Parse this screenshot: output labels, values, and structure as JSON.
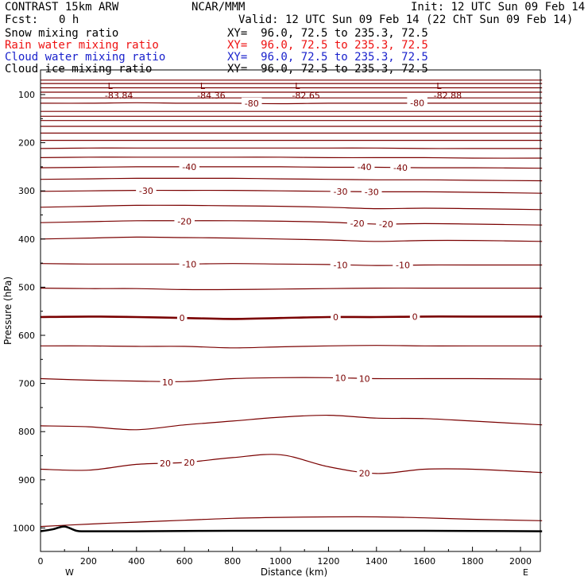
{
  "header": {
    "model": "CONTRAST 15km ARW",
    "org": "NCAR/MMM",
    "init": "Init: 12 UTC Sun 09 Feb 14",
    "fcst_label": "Fcst:",
    "fcst_value": "0 h",
    "valid": "Valid: 12 UTC Sun 09 Feb 14 (22 ChT Sun 09 Feb 14)"
  },
  "legend": [
    {
      "name": "Snow mixing ratio",
      "xy": "XY=  96.0, 72.5 to 235.3, 72.5",
      "color": "#000000"
    },
    {
      "name": "Rain water mixing ratio",
      "xy": "XY=  96.0, 72.5 to 235.3, 72.5",
      "color": "#ee1111"
    },
    {
      "name": "Cloud water mixing ratio",
      "xy": "XY=  96.0, 72.5 to 235.3, 72.5",
      "color": "#1a22cc"
    },
    {
      "name": "Cloud ice mixing ratio",
      "xy": "XY=  96.0, 72.5 to 235.3, 72.5",
      "color": "#000000"
    }
  ],
  "colors": {
    "contour": "#7a0000",
    "terrain": "#000000",
    "frame": "#000000"
  },
  "chart_data": {
    "type": "line",
    "xlabel": "Distance (km)",
    "ylabel": "Pressure (hPa)",
    "xlim": [
      0,
      2090
    ],
    "ylim": [
      1050,
      65
    ],
    "x_ticks": [
      0,
      200,
      400,
      600,
      800,
      1000,
      1200,
      1400,
      1600,
      1800,
      2000
    ],
    "y_ticks": [
      100,
      200,
      300,
      400,
      500,
      600,
      700,
      800,
      900,
      1000
    ],
    "x_end_labels": {
      "left": "W",
      "right": "E"
    },
    "contour_x": [
      0,
      200,
      400,
      600,
      800,
      1000,
      1200,
      1400,
      1600,
      1800,
      2090
    ],
    "contours": [
      {
        "label": "20",
        "p": [
          997,
          992,
          988,
          984,
          980,
          978,
          977,
          977,
          979,
          982,
          985
        ]
      },
      {
        "label": "20",
        "p": [
          878,
          880,
          868,
          864,
          854,
          848,
          873,
          887,
          878,
          878,
          885
        ]
      },
      {
        "label": "10",
        "p": [
          788,
          790,
          796,
          786,
          778,
          770,
          766,
          772,
          773,
          778,
          786
        ]
      },
      {
        "label": "10",
        "p": [
          690,
          693,
          695,
          696,
          690,
          688,
          688,
          690,
          690,
          690,
          691
        ]
      },
      {
        "label": "",
        "p": [
          622,
          622,
          623,
          623,
          626,
          624,
          622,
          621,
          622,
          622,
          622
        ]
      },
      {
        "label": "0",
        "p": [
          562,
          561,
          562,
          564,
          566,
          564,
          562,
          562,
          561,
          561,
          561
        ]
      },
      {
        "label": "",
        "p": [
          502,
          503,
          503,
          505,
          505,
          504,
          503,
          502,
          502,
          502,
          502
        ]
      },
      {
        "label": "10",
        "p": [
          451,
          452,
          452,
          452,
          451,
          452,
          453,
          455,
          454,
          454,
          454
        ]
      },
      {
        "label": "",
        "p": [
          400,
          398,
          396,
          397,
          398,
          400,
          402,
          405,
          403,
          403,
          405
        ]
      },
      {
        "label": "20",
        "p": [
          366,
          364,
          362,
          362,
          362,
          363,
          365,
          369,
          368,
          369,
          371
        ]
      },
      {
        "label": "",
        "p": [
          334,
          332,
          330,
          330,
          331,
          332,
          334,
          337,
          336,
          337,
          339
        ]
      },
      {
        "label": "30",
        "p": [
          301,
          300,
          299,
          299,
          299,
          300,
          301,
          302,
          302,
          303,
          305
        ]
      },
      {
        "label": "",
        "p": [
          276,
          275,
          274,
          274,
          274,
          275,
          276,
          277,
          277,
          278,
          279
        ]
      },
      {
        "label": "40",
        "p": [
          252,
          251,
          250,
          250,
          250,
          250,
          251,
          251,
          252,
          252,
          253
        ]
      },
      {
        "label": "",
        "p": [
          231,
          230,
          230,
          230,
          230,
          230,
          231,
          231,
          231,
          232,
          232
        ]
      },
      {
        "label": "",
        "p": [
          212,
          211,
          211,
          211,
          211,
          211,
          211,
          211,
          212,
          212,
          212
        ]
      },
      {
        "label": "",
        "p": [
          195,
          195,
          195,
          195,
          195,
          195,
          195,
          195,
          195,
          195,
          195
        ]
      },
      {
        "label": "",
        "p": [
          180,
          180,
          180,
          180,
          180,
          180,
          180,
          180,
          180,
          180,
          180
        ]
      },
      {
        "label": "",
        "p": [
          166,
          166,
          166,
          166,
          166,
          166,
          166,
          166,
          166,
          166,
          166
        ]
      },
      {
        "label": "",
        "p": [
          154,
          154,
          154,
          154,
          154,
          154,
          154,
          154,
          154,
          154,
          154
        ]
      },
      {
        "label": "",
        "p": [
          145,
          145,
          145,
          145,
          145,
          145,
          145,
          145,
          145,
          145,
          145
        ]
      },
      {
        "label": "",
        "p": [
          135,
          135,
          135,
          135,
          135,
          135,
          135,
          135,
          135,
          135,
          135
        ]
      },
      {
        "label": "80",
        "p": [
          118,
          118,
          117,
          118,
          118,
          119,
          118,
          118,
          118,
          118,
          118
        ]
      },
      {
        "label": "",
        "p": [
          107,
          107,
          107,
          107,
          107,
          107,
          107,
          107,
          107,
          107,
          107
        ]
      },
      {
        "label": "",
        "p": [
          95,
          95,
          95,
          95,
          95,
          95,
          95,
          95,
          95,
          95,
          95
        ]
      },
      {
        "label": "",
        "p": [
          86,
          86,
          86,
          86,
          86,
          86,
          86,
          86,
          86,
          86,
          86
        ]
      },
      {
        "label": "",
        "p": [
          77,
          77,
          77,
          77,
          77,
          77,
          77,
          77,
          77,
          77,
          77
        ]
      },
      {
        "label": "",
        "p": [
          70,
          70,
          70,
          70,
          70,
          70,
          70,
          70,
          70,
          70,
          70
        ]
      }
    ],
    "bold_contour_label": "0",
    "contour_labels": [
      {
        "text": "-80",
        "x": 880,
        "p": 118
      },
      {
        "text": "-80",
        "x": 1570,
        "p": 117
      },
      {
        "text": "-40",
        "x": 620,
        "p": 250
      },
      {
        "text": "-40",
        "x": 1350,
        "p": 250
      },
      {
        "text": "-40",
        "x": 1500,
        "p": 252
      },
      {
        "text": "-30",
        "x": 440,
        "p": 300
      },
      {
        "text": "-30",
        "x": 1250,
        "p": 301
      },
      {
        "text": "-30",
        "x": 1380,
        "p": 302
      },
      {
        "text": "-20",
        "x": 600,
        "p": 363
      },
      {
        "text": "-20",
        "x": 1320,
        "p": 367
      },
      {
        "text": "-20",
        "x": 1440,
        "p": 369
      },
      {
        "text": "-10",
        "x": 620,
        "p": 452
      },
      {
        "text": "-10",
        "x": 1250,
        "p": 454
      },
      {
        "text": "-10",
        "x": 1510,
        "p": 454
      },
      {
        "text": "0",
        "x": 590,
        "p": 564
      },
      {
        "text": "0",
        "x": 1230,
        "p": 562
      },
      {
        "text": "0",
        "x": 1560,
        "p": 561
      },
      {
        "text": "10",
        "x": 1250,
        "p": 688
      },
      {
        "text": "10",
        "x": 1350,
        "p": 690
      },
      {
        "text": "10",
        "x": 530,
        "p": 697
      },
      {
        "text": "20",
        "x": 520,
        "p": 866
      },
      {
        "text": "20",
        "x": 620,
        "p": 864
      },
      {
        "text": "20",
        "x": 1350,
        "p": 886
      }
    ],
    "lows": [
      {
        "marker": "L",
        "value": "-83.84",
        "x": 320
      },
      {
        "marker": "L",
        "value": "-84.36",
        "x": 705
      },
      {
        "marker": "L",
        "value": "-82.65",
        "x": 1100
      },
      {
        "marker": "L",
        "value": "-82.88",
        "x": 1690
      }
    ],
    "terrain_x": [
      0,
      50,
      100,
      150,
      200,
      400,
      800,
      1200,
      1600,
      2090
    ],
    "terrain_p": [
      1007,
      1003,
      997,
      1006,
      1007,
      1007,
      1006,
      1006,
      1006,
      1007
    ]
  }
}
